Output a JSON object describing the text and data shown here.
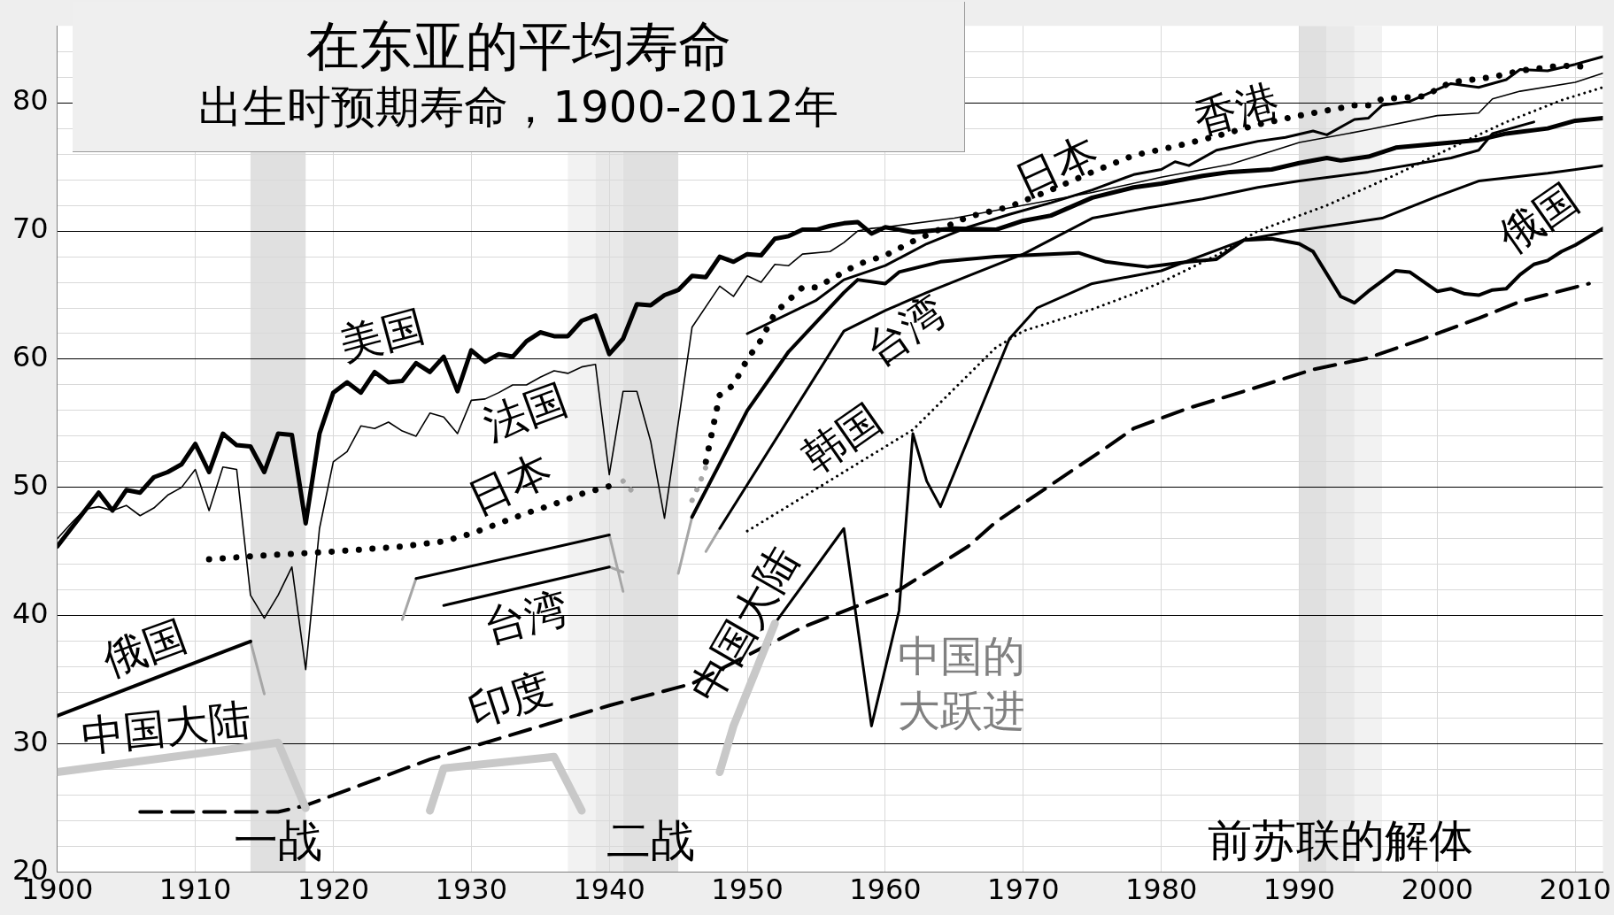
{
  "chart_data": {
    "type": "line",
    "title": "在东亚的平均寿命",
    "subtitle": "出生时预期寿命，1900-2012年",
    "xlim": [
      1900,
      2012
    ],
    "xticks": [
      1900,
      1910,
      1920,
      1930,
      1940,
      1950,
      1960,
      1970,
      1980,
      1990,
      2000,
      2010
    ],
    "ylim": [
      20,
      86
    ],
    "yticks": [
      20,
      {
        "value": 22,
        "label": null
      },
      {
        "value": 24,
        "label": null
      },
      {
        "value": 26,
        "label": null
      },
      {
        "value": 28,
        "label": null
      },
      30,
      {
        "value": 32,
        "label": null
      },
      {
        "value": 34,
        "label": null
      },
      {
        "value": 36,
        "label": null
      },
      {
        "value": 38,
        "label": null
      },
      40,
      {
        "value": 42,
        "label": null
      },
      {
        "value": 44,
        "label": null
      },
      {
        "value": 46,
        "label": null
      },
      {
        "value": 48,
        "label": null
      },
      50,
      {
        "value": 52,
        "label": null
      },
      {
        "value": 54,
        "label": null
      },
      {
        "value": 56,
        "label": null
      },
      {
        "value": 58,
        "label": null
      },
      60,
      {
        "value": 62,
        "label": null
      },
      {
        "value": 64,
        "label": null
      },
      {
        "value": 66,
        "label": null
      },
      {
        "value": 68,
        "label": null
      },
      70,
      {
        "value": 72,
        "label": null
      },
      {
        "value": 74,
        "label": null
      },
      {
        "value": 76,
        "label": null
      },
      {
        "value": 78,
        "label": null
      },
      80,
      {
        "value": 82,
        "label": null
      },
      {
        "value": 84,
        "label": null
      }
    ],
    "grid": true,
    "legend": false,
    "series": [
      {
        "name": "美国",
        "color": "#000000",
        "line_style": "solid",
        "x": [
          1900,
          1901,
          1902,
          1903,
          1904,
          1905,
          1906,
          1907,
          1908,
          1909,
          1910,
          1911,
          1912,
          1913,
          1914,
          1915,
          1916,
          1917,
          1918,
          1919,
          1920,
          1921,
          1922,
          1923,
          1924,
          1925,
          1926,
          1927,
          1928,
          1929,
          1930,
          1931,
          1932,
          1933,
          1934,
          1935,
          1936,
          1937,
          1938,
          1939,
          1940,
          1941,
          1942,
          1943,
          1944,
          1945,
          1946,
          1947,
          1948,
          1949,
          1950,
          1951,
          1952,
          1953,
          1954,
          1955,
          1956,
          1957,
          1958,
          1959,
          1960,
          1961,
          1962,
          1965,
          1968,
          1970,
          1972,
          1975,
          1978,
          1980,
          1983,
          1985,
          1988,
          1990,
          1992,
          1993,
          1995,
          1997,
          2000,
          2003,
          2005,
          2008,
          2010,
          2012
        ],
        "values": [
          45.4,
          46.8,
          48.2,
          49.6,
          48.2,
          49.8,
          49.6,
          50.8,
          51.2,
          51.8,
          53.4,
          51.2,
          54.2,
          53.3,
          53.2,
          51.2,
          54.2,
          54.1,
          47.2,
          54.2,
          57.4,
          58.2,
          57.4,
          59.0,
          58.2,
          58.3,
          59.7,
          59.0,
          60.2,
          57.5,
          60.7,
          59.8,
          60.4,
          60.2,
          61.4,
          62.1,
          61.8,
          61.8,
          63.0,
          63.4,
          60.4,
          61.6,
          64.3,
          64.2,
          65.0,
          65.4,
          66.5,
          66.4,
          68.0,
          67.6,
          68.2,
          68.1,
          69.4,
          69.6,
          70.1,
          70.1,
          70.4,
          70.6,
          70.7,
          69.8,
          70.3,
          70.1,
          69.9,
          70.2,
          70.1,
          70.8,
          71.2,
          72.6,
          73.4,
          73.7,
          74.3,
          74.6,
          74.8,
          75.3,
          75.7,
          75.5,
          75.8,
          76.5,
          76.8,
          77.1,
          77.6,
          78.0,
          78.6,
          78.8
        ]
      },
      {
        "name": "法国",
        "color": "#000000",
        "line_style": "solid",
        "x": [
          1900,
          1901,
          1902,
          1903,
          1904,
          1905,
          1906,
          1907,
          1908,
          1909,
          1910,
          1911,
          1912,
          1913,
          1914,
          1915,
          1916,
          1917,
          1918,
          1919,
          1920,
          1921,
          1922,
          1923,
          1924,
          1925,
          1926,
          1927,
          1928,
          1929,
          1930,
          1931,
          1932,
          1933,
          1934,
          1935,
          1936,
          1937,
          1938,
          1939,
          1940,
          1941,
          1942,
          1943,
          1944,
          1946,
          1948,
          1949,
          1950,
          1951,
          1952,
          1953,
          1954,
          1956,
          1957,
          1958,
          1959,
          1960,
          1965,
          1970,
          1975,
          1980,
          1985,
          1990,
          1995,
          2000,
          2003,
          2004,
          2006,
          2010,
          2012
        ],
        "values": [
          46.0,
          47.2,
          48.3,
          48.5,
          48.2,
          48.6,
          47.8,
          48.4,
          49.4,
          50.0,
          51.4,
          48.2,
          51.6,
          51.4,
          41.6,
          39.8,
          41.6,
          43.8,
          35.8,
          46.8,
          52.0,
          52.8,
          54.8,
          54.6,
          55.1,
          54.4,
          54.0,
          55.8,
          55.5,
          54.2,
          56.8,
          56.9,
          57.4,
          58.0,
          58.0,
          58.6,
          59.1,
          58.9,
          59.4,
          59.6,
          51.0,
          57.5,
          57.5,
          53.6,
          47.6,
          62.5,
          65.7,
          64.9,
          66.5,
          66.0,
          67.4,
          67.3,
          68.2,
          68.4,
          69.1,
          70.0,
          70.2,
          70.3,
          71.0,
          72.0,
          73.0,
          74.2,
          75.2,
          76.9,
          77.9,
          79.0,
          79.2,
          80.3,
          80.9,
          81.6,
          82.3
        ]
      },
      {
        "name": "日本",
        "color": "#000000",
        "line_style": "dotted",
        "x": [
          1911,
          1915,
          1920,
          1925,
          1928,
          1930,
          1932,
          1934,
          1936,
          1938,
          1940
        ],
        "values": [
          44.4,
          44.7,
          45.0,
          45.4,
          45.8,
          46.4,
          47.2,
          48.0,
          48.7,
          49.5,
          50.1
        ]
      },
      {
        "color": "#a6a6a6",
        "line_style": "dotted",
        "x": [
          1941,
          1942,
          1944,
          1946,
          1946.5,
          1947
        ],
        "values": [
          50.5,
          49.3,
          null,
          49.0,
          50.2,
          51.6
        ]
      },
      {
        "name": "日本",
        "color": "#000000",
        "line_style": "dotted",
        "x": [
          1947,
          1948,
          1949,
          1950,
          1951,
          1952,
          1954,
          1955,
          1958,
          1960,
          1962,
          1966,
          1969,
          1972,
          1975,
          1978,
          1981,
          1984,
          1987,
          1990,
          1994,
          1995,
          1996,
          1999,
          2001,
          2004,
          2006,
          2009,
          2011
        ],
        "values": [
          52.0,
          57.2,
          58.0,
          60.0,
          61.5,
          63.6,
          65.6,
          65.6,
          67.4,
          68.1,
          69.2,
          71.1,
          71.9,
          73.2,
          74.6,
          75.9,
          76.6,
          77.4,
          78.3,
          79.0,
          79.8,
          79.8,
          80.3,
          80.5,
          81.6,
          82.0,
          82.5,
          82.9,
          82.8
        ]
      },
      {
        "name": "香港",
        "color": "#000000",
        "line_style": "solid",
        "x": [
          1950,
          1955,
          1957,
          1960,
          1963,
          1966,
          1969,
          1972,
          1975,
          1978,
          1980,
          1981,
          1982,
          1984,
          1987,
          1989,
          1991,
          1992,
          1994,
          1995,
          1996,
          1998,
          2001,
          2003,
          2005,
          2006,
          2008,
          2010,
          2012
        ],
        "values": [
          62.0,
          64.6,
          66.2,
          67.3,
          69.0,
          70.3,
          71.3,
          72.2,
          73.2,
          74.4,
          74.8,
          75.4,
          75.1,
          76.3,
          77.0,
          77.3,
          77.8,
          77.5,
          78.7,
          78.8,
          79.8,
          80.1,
          81.5,
          81.2,
          81.8,
          82.6,
          82.5,
          83.0,
          83.6
        ]
      },
      {
        "name": "台湾",
        "color": "#000000",
        "line_style": "solid",
        "x": [
          1928,
          1940
        ],
        "values": [
          40.8,
          43.8
        ]
      },
      {
        "color": "#000000",
        "line_style": "solid",
        "x": [
          1926,
          1940
        ],
        "values": [
          42.9,
          46.3
        ]
      },
      {
        "name": "台湾",
        "color": "#000000",
        "line_style": "solid",
        "x": [
          1948,
          1957,
          1960,
          1963,
          1966,
          1970,
          1975,
          1979,
          1983,
          1987,
          1990,
          1995,
          2001,
          2003,
          2004,
          2007
        ],
        "values": [
          46.8,
          62.2,
          63.8,
          65.2,
          66.5,
          68.2,
          71.0,
          71.8,
          72.5,
          73.4,
          73.9,
          74.6,
          75.7,
          76.3,
          77.6,
          78.5
        ]
      },
      {
        "name": "俄国",
        "color": "#000000",
        "line_style": "solid",
        "x": [
          1900,
          1914
        ],
        "values": [
          32.2,
          38.0
        ]
      },
      {
        "name": "俄国",
        "color": "#000000",
        "line_style": "solid",
        "x": [
          1946,
          1950,
          1953,
          1957,
          1958,
          1960,
          1961,
          1964,
          1968,
          1974,
          1976,
          1979,
          1982,
          1984,
          1986,
          1988,
          1990,
          1991,
          1993,
          1994,
          1995,
          1996,
          1997,
          1998,
          2000,
          2001,
          2002,
          2003,
          2004,
          2005,
          2006,
          2007,
          2008,
          2009,
          2010,
          2012
        ],
        "values": [
          47.7,
          56.0,
          60.6,
          65.2,
          66.2,
          65.9,
          66.8,
          67.6,
          68.0,
          68.3,
          67.6,
          67.2,
          67.6,
          67.8,
          69.3,
          69.4,
          69.0,
          68.4,
          64.9,
          64.4,
          65.3,
          66.1,
          66.9,
          66.8,
          65.3,
          65.5,
          65.1,
          65.0,
          65.4,
          65.5,
          66.6,
          67.4,
          67.7,
          68.4,
          68.9,
          70.2
        ]
      },
      {
        "name": "中国大陆",
        "color": "#c8c8c8",
        "line_style": "solid",
        "x": [
          1900,
          1914,
          1916,
          1918,
          1922,
          1927,
          1928,
          1936,
          1938,
          1943,
          1948,
          1949,
          1952
        ],
        "values": [
          27.8,
          29.8,
          30.1,
          25.0,
          null,
          24.8,
          28.1,
          29.0,
          24.8,
          null,
          27.8,
          31.4,
          39.4
        ]
      },
      {
        "name": "中国大陆",
        "color": "#000000",
        "line_style": "solid",
        "x": [
          1952,
          1957,
          1959,
          1961,
          1962,
          1963,
          1964,
          1969,
          1971,
          1975,
          1978,
          1980,
          1986,
          1989,
          1996,
          2000,
          2003,
          2008,
          2012
        ],
        "values": [
          39.4,
          46.8,
          31.4,
          40.4,
          54.2,
          50.5,
          48.5,
          61.6,
          64.0,
          65.9,
          66.5,
          66.9,
          69.3,
          69.9,
          71.0,
          72.7,
          73.9,
          74.5,
          75.1
        ]
      },
      {
        "name": "韩国",
        "color": "#000000",
        "line_style": "dotted",
        "x": [
          1950,
          1962,
          1968,
          1970,
          1975,
          1978,
          1980,
          1984,
          1987,
          1992,
          1997,
          2002,
          2005,
          2009,
          2012
        ],
        "values": [
          46.6,
          54.5,
          60.9,
          62.2,
          63.9,
          65.1,
          66.0,
          68.1,
          70.0,
          72.0,
          74.4,
          77.0,
          78.5,
          80.2,
          81.2
        ]
      },
      {
        "name": "印度",
        "color": "#000000",
        "line_style": "dashed",
        "x": [
          1906,
          1916,
          1918,
          1927,
          1940,
          1946,
          1954,
          1960,
          1961,
          1966,
          1968,
          1976,
          1978,
          1982,
          1986,
          1991,
          1995,
          1999,
          2003,
          2006,
          2011
        ],
        "values": [
          24.7,
          24.7,
          25.2,
          28.8,
          33.0,
          34.7,
          39.1,
          41.6,
          42.0,
          45.4,
          47.3,
          53.1,
          54.6,
          56.2,
          57.5,
          59.2,
          60.1,
          61.6,
          63.2,
          64.5,
          65.9
        ]
      },
      {
        "color": "#a6a6a6",
        "line_style": "solid",
        "x": [
          1925,
          1926
        ],
        "values": [
          39.7,
          42.9
        ]
      },
      {
        "color": "#a6a6a6",
        "line_style": "solid",
        "x": [
          1940,
          1941
        ],
        "values": [
          46.3,
          41.9
        ]
      },
      {
        "color": "#a6a6a6",
        "line_style": "solid",
        "x": [
          1940,
          1941
        ],
        "values": [
          43.8,
          43.4
        ]
      },
      {
        "color": "#a6a6a6",
        "line_style": "solid",
        "x": [
          1914,
          1915
        ],
        "values": [
          38.0,
          33.9
        ]
      },
      {
        "color": "#a6a6a6",
        "line_style": "solid",
        "x": [
          1945,
          1946
        ],
        "values": [
          43.3,
          47.7
        ]
      },
      {
        "color": "#a6a6a6",
        "line_style": "solid",
        "x": [
          1947,
          1948
        ],
        "values": [
          45.0,
          46.8
        ]
      }
    ],
    "bands": [
      {
        "axis": "x",
        "from": 1914,
        "to": 1918,
        "label": "一战",
        "color": "#e0e0e0"
      },
      {
        "axis": "x",
        "from": 1937,
        "to": 1939,
        "label": null,
        "color": "#f2f2f2"
      },
      {
        "axis": "x",
        "from": 1939,
        "to": 1941,
        "label": null,
        "color": "#e9e9e9"
      },
      {
        "axis": "x",
        "from": 1941,
        "to": 1945,
        "label": "二战",
        "color": "#e0e0e0"
      },
      {
        "axis": "x",
        "from": 1990,
        "to": 1992,
        "label": null,
        "color": "#e0e0e0"
      },
      {
        "axis": "x",
        "from": 1992,
        "to": 1994,
        "label": "前苏联的解体",
        "color": "#e9e9e9"
      },
      {
        "axis": "x",
        "from": 1994,
        "to": 1996,
        "label": null,
        "color": "#f2f2f2"
      }
    ],
    "annotations": [
      {
        "text": "中国的",
        "x": 1959,
        "y": 31.4
      },
      {
        "text": "大跃进",
        "x": 1959,
        "y": 31.4
      }
    ]
  }
}
